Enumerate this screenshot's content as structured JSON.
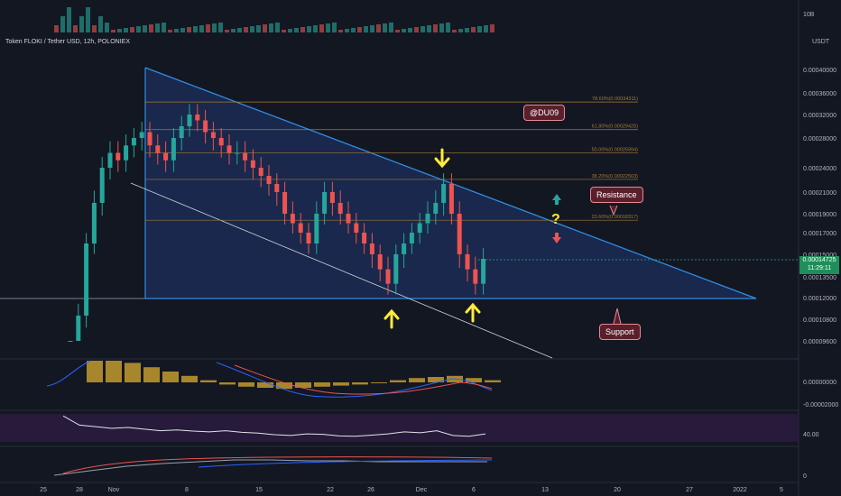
{
  "header": {
    "symbol": "Token FLOKI / Tether USD, 12h, POLONIEX",
    "unit": "USDT"
  },
  "volume_axis_label": "10B",
  "current_price": {
    "value": "0.00014725",
    "countdown": "11:29:11"
  },
  "annotations": {
    "author_tag": "@DU09",
    "resistance": "Resistance",
    "support": "Support",
    "question": "?"
  },
  "colors": {
    "bull": "#26a69a",
    "bear": "#ef5350",
    "triangle_fill": "#1b2c53",
    "triangle_line": "#2f8de4",
    "fib": "#a57a36",
    "accent_yellow": "#ffeb3b",
    "macd_hist": "#c39b2e",
    "rsi_band": "#2a1b3d"
  },
  "chart_data": [
    {
      "type": "line",
      "title": "Token FLOKI / Tether USD, 12h, POLONIEX",
      "price_axis_ticks": [
        "0.00040000",
        "0.00036000",
        "0.00032000",
        "0.00028000",
        "0.00024000",
        "0.00021000",
        "0.00019000",
        "0.00017000",
        "0.00015000",
        "0.00013500",
        "0.00012000",
        "0.00010800",
        "0.00009600"
      ],
      "x_tick_labels": [
        "25",
        "28",
        "Nov",
        "8",
        "15",
        "22",
        "26",
        "Dec",
        "6",
        "13",
        "20",
        "27",
        "2022",
        "5"
      ],
      "fib_levels": [
        {
          "label": "78.60%(0.00034311)",
          "price": 0.00034311
        },
        {
          "label": "61.80%(0.00029425)",
          "price": 0.00029425
        },
        {
          "label": "50.00%(0.00025994)",
          "price": 0.00025994
        },
        {
          "label": "38.20%(0.00022563)",
          "price": 0.00022563
        },
        {
          "label": "23.60%(0.00018317)",
          "price": 0.00018317
        }
      ],
      "close_series_approx": [
        9e-05,
        0.00011,
        0.00016,
        0.0002,
        0.00024,
        0.00026,
        0.00025,
        0.00027,
        0.00028,
        0.00029,
        0.00027,
        0.00026,
        0.00025,
        0.00028,
        0.0003,
        0.00032,
        0.00031,
        0.00029,
        0.00028,
        0.00027,
        0.00026,
        0.00026,
        0.00025,
        0.00024,
        0.00023,
        0.00022,
        0.00021,
        0.00019,
        0.00018,
        0.00017,
        0.00016,
        0.00019,
        0.00021,
        0.0002,
        0.00019,
        0.00018,
        0.00017,
        0.00016,
        0.00015,
        0.00014,
        0.00013,
        0.00015,
        0.00016,
        0.00017,
        0.00018,
        0.00019,
        0.0002,
        0.00022,
        0.00019,
        0.00015,
        0.00014,
        0.00013,
        0.000147
      ]
    },
    {
      "type": "bar",
      "name": "MACD",
      "axis_ticks": [
        "0.00000000",
        "-0.00002000"
      ],
      "values": [
        2e-05,
        2e-05,
        1.8e-05,
        1.4e-05,
        1e-05,
        6e-06,
        2e-06,
        -2e-06,
        -4e-06,
        -5e-06,
        -6e-06,
        -5e-06,
        -4e-06,
        -3e-06,
        -2e-06,
        0.0,
        2e-06,
        4e-06,
        5e-06,
        6e-06,
        4e-06,
        2e-06
      ]
    },
    {
      "type": "line",
      "name": "RSI",
      "axis_ticks": [
        "40.00"
      ],
      "values": [
        95,
        72,
        68,
        64,
        66,
        62,
        58,
        60,
        57,
        55,
        58,
        54,
        52,
        48,
        46,
        50,
        49,
        45,
        44,
        47,
        50,
        55,
        53,
        58,
        46,
        44,
        50
      ]
    },
    {
      "type": "line",
      "name": "ADX",
      "axis_ticks": [
        "0"
      ],
      "values": [
        5,
        10,
        15,
        18,
        20,
        22,
        22,
        21,
        21,
        20,
        20,
        20,
        20
      ]
    }
  ]
}
